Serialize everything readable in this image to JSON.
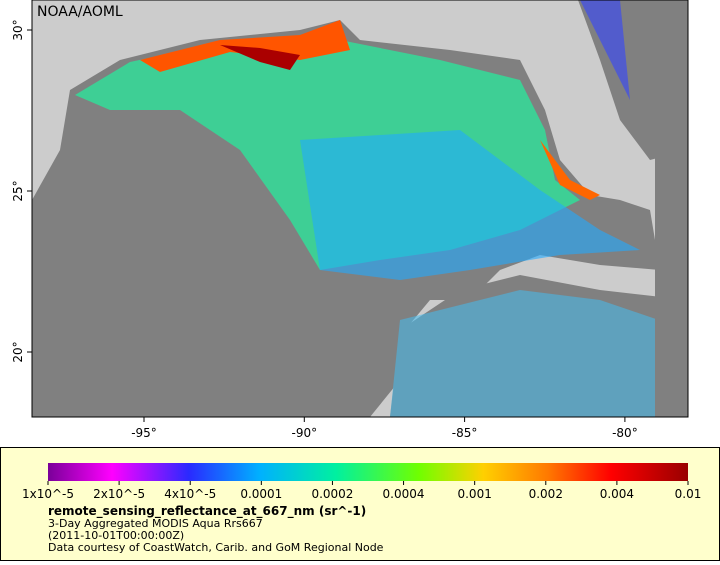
{
  "map": {
    "credit": "NOAA/AOML",
    "lon_ticks": [
      "-95°",
      "-90°",
      "-85°",
      "-80°"
    ],
    "lat_ticks": [
      "30°",
      "25°",
      "20°"
    ],
    "colorbar_ticks": [
      "1x10^-5",
      "2x10^-5",
      "4x10^-5",
      "0.0001",
      "0.0002",
      "0.0004",
      "0.001",
      "0.002",
      "0.004",
      "0.01"
    ],
    "variable": "remote_sensing_reflectance_at_667_nm (sr^-1)",
    "description": "3-Day Aggregated MODIS Aqua Rrs667",
    "time": "(2011-10-01T00:00:00Z)",
    "source": "Data courtesy of CoastWatch, Carib. and GoM Regional Node"
  }
}
